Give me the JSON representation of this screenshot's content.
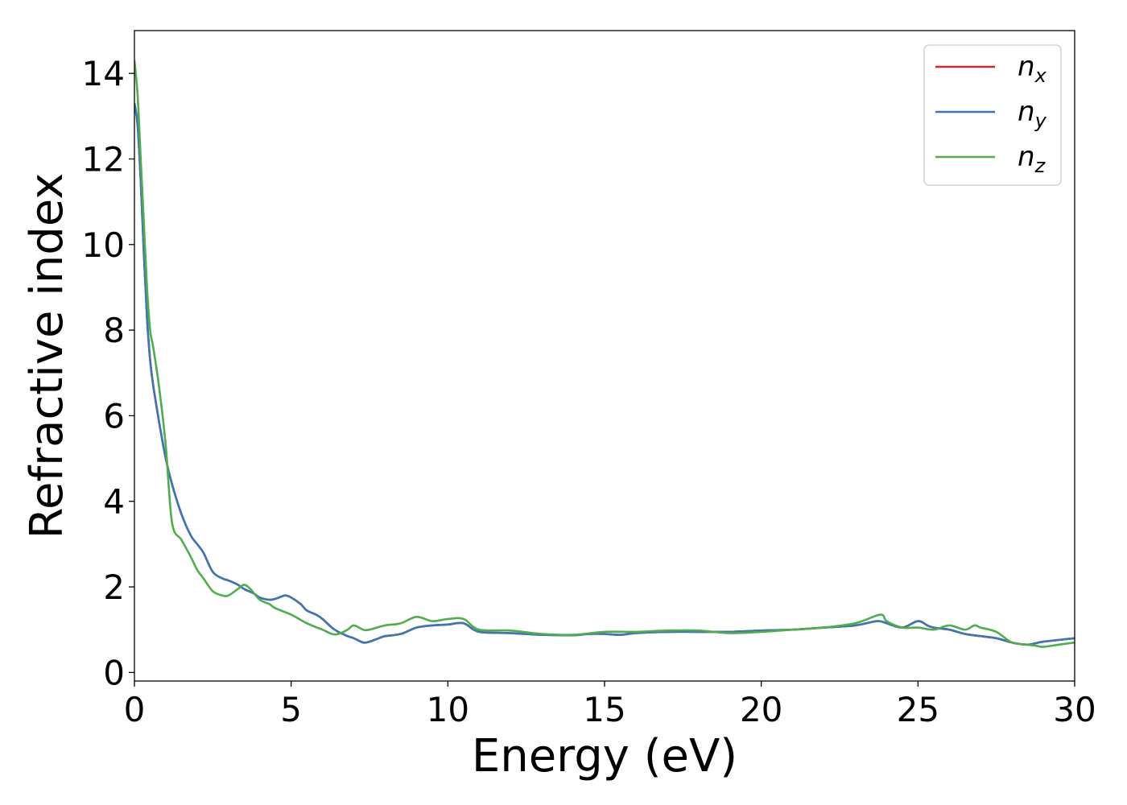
{
  "chart_data": {
    "type": "line",
    "title": "",
    "xlabel": "Energy (eV)",
    "ylabel": "Refractive index",
    "xlim": [
      0,
      30
    ],
    "ylim": [
      -0.2,
      15
    ],
    "xticks": [
      0,
      5,
      10,
      15,
      20,
      25,
      30
    ],
    "yticks": [
      0,
      2,
      4,
      6,
      8,
      10,
      12,
      14
    ],
    "grid": false,
    "legend": {
      "placement": "top-right",
      "entries": [
        {
          "base": "n",
          "sub": "x"
        },
        {
          "base": "n",
          "sub": "y"
        },
        {
          "base": "n",
          "sub": "z"
        }
      ]
    },
    "series": [
      {
        "name": "n_x",
        "color": "#d62728",
        "x": [
          0,
          0.1,
          0.2,
          0.3,
          0.4,
          0.5,
          0.6,
          0.8,
          1.0,
          1.2,
          1.5,
          1.8,
          2.0,
          2.2,
          2.5,
          2.8,
          3.0,
          3.3,
          3.5,
          3.8,
          4.0,
          4.3,
          4.5,
          4.8,
          5.0,
          5.3,
          5.5,
          5.8,
          6.0,
          6.3,
          6.5,
          6.8,
          7.0,
          7.3,
          7.5,
          7.8,
          8.0,
          8.5,
          9.0,
          9.5,
          10.0,
          10.5,
          11.0,
          12.0,
          13.0,
          14.0,
          14.5,
          15.0,
          15.5,
          16.0,
          17.0,
          18.0,
          19.0,
          20.0,
          21.0,
          22.0,
          23.0,
          23.7,
          24.0,
          24.5,
          25.0,
          25.3,
          25.5,
          26.0,
          26.5,
          27.0,
          27.5,
          28.0,
          28.5,
          29.0,
          30.0
        ],
        "y": [
          13.3,
          12.8,
          11.5,
          9.8,
          8.3,
          7.3,
          6.7,
          5.8,
          5.0,
          4.4,
          3.7,
          3.2,
          3.0,
          2.8,
          2.35,
          2.2,
          2.15,
          2.05,
          1.95,
          1.85,
          1.75,
          1.7,
          1.72,
          1.8,
          1.75,
          1.6,
          1.45,
          1.35,
          1.25,
          1.05,
          0.95,
          0.85,
          0.8,
          0.7,
          0.72,
          0.8,
          0.85,
          0.9,
          1.05,
          1.1,
          1.12,
          1.15,
          0.95,
          0.92,
          0.88,
          0.87,
          0.9,
          0.9,
          0.88,
          0.92,
          0.95,
          0.95,
          0.95,
          0.98,
          1.0,
          1.05,
          1.1,
          1.2,
          1.15,
          1.05,
          1.2,
          1.1,
          1.05,
          1.0,
          0.9,
          0.85,
          0.8,
          0.7,
          0.65,
          0.72,
          0.8
        ]
      },
      {
        "name": "n_y",
        "color": "#3a76b8",
        "x": [
          0,
          0.1,
          0.2,
          0.3,
          0.4,
          0.5,
          0.6,
          0.8,
          1.0,
          1.2,
          1.5,
          1.8,
          2.0,
          2.2,
          2.5,
          2.8,
          3.0,
          3.3,
          3.5,
          3.8,
          4.0,
          4.3,
          4.5,
          4.8,
          5.0,
          5.3,
          5.5,
          5.8,
          6.0,
          6.3,
          6.5,
          6.8,
          7.0,
          7.3,
          7.5,
          7.8,
          8.0,
          8.5,
          9.0,
          9.5,
          10.0,
          10.5,
          11.0,
          12.0,
          13.0,
          14.0,
          14.5,
          15.0,
          15.5,
          16.0,
          17.0,
          18.0,
          19.0,
          20.0,
          21.0,
          22.0,
          23.0,
          23.7,
          24.0,
          24.5,
          25.0,
          25.3,
          25.5,
          26.0,
          26.5,
          27.0,
          27.5,
          28.0,
          28.5,
          29.0,
          30.0
        ],
        "y": [
          13.3,
          12.8,
          11.5,
          9.8,
          8.3,
          7.3,
          6.7,
          5.8,
          5.0,
          4.4,
          3.7,
          3.2,
          3.0,
          2.8,
          2.35,
          2.2,
          2.15,
          2.05,
          1.95,
          1.85,
          1.75,
          1.7,
          1.72,
          1.8,
          1.75,
          1.6,
          1.45,
          1.35,
          1.25,
          1.05,
          0.95,
          0.85,
          0.8,
          0.7,
          0.72,
          0.8,
          0.85,
          0.9,
          1.05,
          1.1,
          1.12,
          1.15,
          0.95,
          0.92,
          0.88,
          0.87,
          0.9,
          0.9,
          0.88,
          0.92,
          0.95,
          0.95,
          0.95,
          0.98,
          1.0,
          1.05,
          1.1,
          1.2,
          1.15,
          1.05,
          1.2,
          1.1,
          1.05,
          1.0,
          0.9,
          0.85,
          0.8,
          0.7,
          0.65,
          0.72,
          0.8
        ]
      },
      {
        "name": "n_z",
        "color": "#4daf4a",
        "x": [
          0,
          0.1,
          0.2,
          0.3,
          0.4,
          0.5,
          0.6,
          0.8,
          1.0,
          1.2,
          1.5,
          1.8,
          2.0,
          2.2,
          2.5,
          2.8,
          3.0,
          3.3,
          3.5,
          3.7,
          4.0,
          4.3,
          4.5,
          5.0,
          5.5,
          6.0,
          6.3,
          6.5,
          6.8,
          7.0,
          7.3,
          7.5,
          8.0,
          8.5,
          9.0,
          9.5,
          10.0,
          10.5,
          11.0,
          12.0,
          13.0,
          14.0,
          15.0,
          16.0,
          17.0,
          18.0,
          19.0,
          20.0,
          21.0,
          22.0,
          23.0,
          23.8,
          24.0,
          24.5,
          25.0,
          25.5,
          26.0,
          26.5,
          26.8,
          27.0,
          27.5,
          28.0,
          28.5,
          28.8,
          29.0,
          29.5,
          30.0
        ],
        "y": [
          14.3,
          13.5,
          12.0,
          10.5,
          9.0,
          8.0,
          7.6,
          6.6,
          5.3,
          3.5,
          3.1,
          2.7,
          2.4,
          2.2,
          1.9,
          1.8,
          1.8,
          1.95,
          2.05,
          1.95,
          1.7,
          1.6,
          1.5,
          1.35,
          1.15,
          1.0,
          0.9,
          0.9,
          1.0,
          1.1,
          1.0,
          1.0,
          1.1,
          1.15,
          1.3,
          1.2,
          1.25,
          1.25,
          1.0,
          0.98,
          0.9,
          0.88,
          0.95,
          0.95,
          0.98,
          0.98,
          0.92,
          0.95,
          1.0,
          1.05,
          1.15,
          1.35,
          1.2,
          1.05,
          1.05,
          1.0,
          1.1,
          1.0,
          1.1,
          1.05,
          0.95,
          0.7,
          0.65,
          0.62,
          0.6,
          0.65,
          0.7
        ]
      }
    ]
  }
}
